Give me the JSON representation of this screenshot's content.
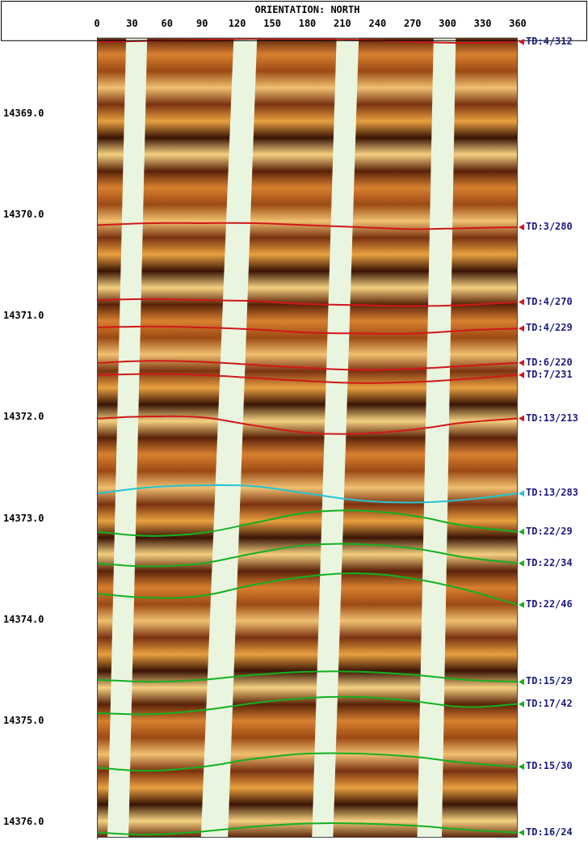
{
  "chart_data": {
    "type": "line",
    "title": "ORIENTATION: NORTH",
    "xlim": [
      0,
      360
    ],
    "xticks": [
      0,
      30,
      60,
      90,
      120,
      150,
      180,
      210,
      240,
      270,
      300,
      330,
      360
    ],
    "ylim": [
      14368.25,
      14376.15
    ],
    "yticks": [
      {
        "value": 14369,
        "label": "14369.0"
      },
      {
        "value": 14370,
        "label": "14370.0"
      },
      {
        "value": 14371,
        "label": "14371.0"
      },
      {
        "value": 14372,
        "label": "14372.0"
      },
      {
        "value": 14373,
        "label": "14373.0"
      },
      {
        "value": 14374,
        "label": "14374.0"
      },
      {
        "value": 14375,
        "label": "14375.0"
      },
      {
        "value": 14376,
        "label": "14376.0"
      }
    ],
    "grid": false,
    "x": [
      0,
      45,
      90,
      135,
      180,
      225,
      270,
      315,
      360
    ],
    "series": [
      {
        "name": "TD:4/312",
        "color": "#d01818",
        "values": [
          14368.29,
          14368.28,
          14368.27,
          14368.26,
          14368.26,
          14368.27,
          14368.29,
          14368.3,
          14368.29
        ]
      },
      {
        "name": "TD:3/280",
        "color": "#d01818",
        "values": [
          14370.1,
          14370.08,
          14370.08,
          14370.08,
          14370.1,
          14370.12,
          14370.14,
          14370.13,
          14370.12
        ]
      },
      {
        "name": "TD:4/270",
        "color": "#d01818",
        "values": [
          14370.84,
          14370.83,
          14370.84,
          14370.85,
          14370.88,
          14370.89,
          14370.9,
          14370.89,
          14370.86
        ]
      },
      {
        "name": "TD:4/229",
        "color": "#d01818",
        "values": [
          14371.11,
          14371.1,
          14371.11,
          14371.13,
          14371.16,
          14371.17,
          14371.17,
          14371.14,
          14371.12
        ]
      },
      {
        "name": "TD:6/220",
        "color": "#d01818",
        "values": [
          14371.46,
          14371.44,
          14371.45,
          14371.48,
          14371.51,
          14371.53,
          14371.52,
          14371.49,
          14371.46
        ]
      },
      {
        "name": "TD:7/231",
        "color": "#d01818",
        "values": [
          14371.58,
          14371.57,
          14371.58,
          14371.61,
          14371.64,
          14371.66,
          14371.65,
          14371.62,
          14371.58
        ]
      },
      {
        "name": "TD:13/213",
        "color": "#d01818",
        "values": [
          14372.01,
          14371.99,
          14372.0,
          14372.08,
          14372.15,
          14372.16,
          14372.12,
          14372.05,
          14372.01
        ]
      },
      {
        "name": "TD:13/283",
        "color": "#22c4d4",
        "values": [
          14372.75,
          14372.69,
          14372.67,
          14372.68,
          14372.75,
          14372.82,
          14372.84,
          14372.81,
          14372.75
        ]
      },
      {
        "name": "TD:22/29",
        "color": "#14b020",
        "values": [
          14373.13,
          14373.17,
          14373.14,
          14373.04,
          14372.94,
          14372.92,
          14372.97,
          14373.07,
          14373.13
        ]
      },
      {
        "name": "TD:22/34",
        "color": "#14b020",
        "values": [
          14373.44,
          14373.47,
          14373.44,
          14373.34,
          14373.26,
          14373.25,
          14373.29,
          14373.38,
          14373.44
        ]
      },
      {
        "name": "TD:22/46",
        "color": "#14b020",
        "values": [
          14373.74,
          14373.78,
          14373.76,
          14373.65,
          14373.57,
          14373.54,
          14373.59,
          14373.7,
          14373.85
        ]
      },
      {
        "name": "TD:15/29",
        "color": "#14b020",
        "values": [
          14374.59,
          14374.61,
          14374.59,
          14374.54,
          14374.51,
          14374.51,
          14374.54,
          14374.59,
          14374.61
        ]
      },
      {
        "name": "TD:17/42",
        "color": "#14b020",
        "values": [
          14374.92,
          14374.93,
          14374.89,
          14374.82,
          14374.77,
          14374.76,
          14374.8,
          14374.86,
          14374.83
        ]
      },
      {
        "name": "TD:15/30",
        "color": "#14b020",
        "values": [
          14375.46,
          14375.49,
          14375.45,
          14375.37,
          14375.32,
          14375.32,
          14375.35,
          14375.41,
          14375.45
        ]
      },
      {
        "name": "TD:16/24",
        "color": "#14b020",
        "values": [
          14376.1,
          14376.12,
          14376.09,
          14376.04,
          14376.01,
          14376.01,
          14376.03,
          14376.07,
          14376.1
        ]
      }
    ],
    "pad_gaps": [
      {
        "x_top": [
          25,
          43
        ],
        "x_bottom": [
          9,
          27
        ]
      },
      {
        "x_top": [
          117,
          137
        ],
        "x_bottom": [
          89,
          112
        ]
      },
      {
        "x_top": [
          205,
          224
        ],
        "x_bottom": [
          184,
          202
        ]
      },
      {
        "x_top": [
          288,
          307
        ],
        "x_bottom": [
          274,
          295
        ]
      }
    ]
  }
}
